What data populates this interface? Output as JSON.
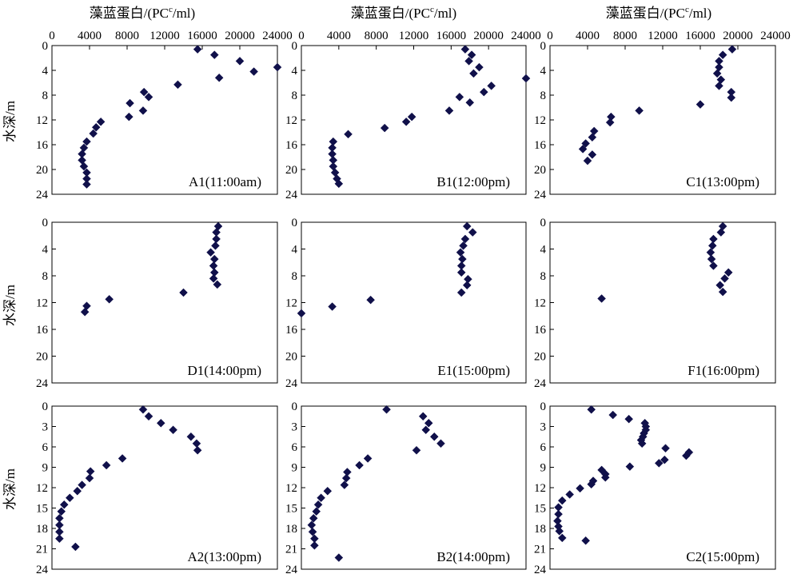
{
  "figure": {
    "x_axis_title": "藻蓝蛋白/(PC",
    "x_axis_title_sup": "c",
    "x_axis_title_tail": "/ml)",
    "y_axis_title": "水深/m",
    "colors": {
      "marker": "#10104a",
      "axis": "#000000",
      "frame": "#000000"
    }
  },
  "chart_data": [
    {
      "id": "A1",
      "type": "scatter",
      "label": "A1(11:00am)",
      "xlim": [
        0,
        24000
      ],
      "ylim": [
        0,
        24
      ],
      "x_ticks": [
        0,
        4000,
        8000,
        12000,
        16000,
        20000,
        24000
      ],
      "y_ticks": [
        0,
        4,
        8,
        12,
        16,
        20,
        24
      ],
      "points": [
        [
          15500,
          0.6
        ],
        [
          17300,
          1.5
        ],
        [
          20000,
          2.5
        ],
        [
          24000,
          3.5
        ],
        [
          21500,
          4.2
        ],
        [
          17800,
          5.2
        ],
        [
          13400,
          6.3
        ],
        [
          9800,
          7.5
        ],
        [
          10300,
          8.3
        ],
        [
          8300,
          9.3
        ],
        [
          9700,
          10.5
        ],
        [
          8200,
          11.5
        ],
        [
          5200,
          12.3
        ],
        [
          4700,
          13.2
        ],
        [
          4400,
          14.2
        ],
        [
          3700,
          15.5
        ],
        [
          3400,
          16.5
        ],
        [
          3200,
          17.5
        ],
        [
          3200,
          18.5
        ],
        [
          3400,
          19.5
        ],
        [
          3700,
          20.5
        ],
        [
          3700,
          21.5
        ],
        [
          3700,
          22.4
        ]
      ]
    },
    {
      "id": "B1",
      "type": "scatter",
      "label": "B1(12:00pm)",
      "xlim": [
        0,
        24000
      ],
      "ylim": [
        0,
        24
      ],
      "x_ticks": [
        0,
        4000,
        8000,
        12000,
        16000,
        20000,
        24000
      ],
      "y_ticks": [
        0,
        4,
        8,
        12,
        16,
        20,
        24
      ],
      "points": [
        [
          17500,
          0.6
        ],
        [
          18200,
          1.5
        ],
        [
          17900,
          2.5
        ],
        [
          19000,
          3.5
        ],
        [
          18400,
          4.5
        ],
        [
          24000,
          5.3
        ],
        [
          20300,
          6.5
        ],
        [
          19500,
          7.5
        ],
        [
          16900,
          8.3
        ],
        [
          18000,
          9.2
        ],
        [
          15800,
          10.5
        ],
        [
          11800,
          11.5
        ],
        [
          11200,
          12.3
        ],
        [
          8900,
          13.3
        ],
        [
          5000,
          14.3
        ],
        [
          3400,
          15.5
        ],
        [
          3300,
          16.5
        ],
        [
          3300,
          17.5
        ],
        [
          3400,
          18.5
        ],
        [
          3400,
          19.5
        ],
        [
          3600,
          20.5
        ],
        [
          3800,
          21.5
        ],
        [
          4000,
          22.3
        ]
      ]
    },
    {
      "id": "C1",
      "type": "scatter",
      "label": "C1(13:00pm)",
      "xlim": [
        0,
        24000
      ],
      "ylim": [
        0,
        24
      ],
      "x_ticks": [
        0,
        4000,
        8000,
        12000,
        16000,
        20000,
        24000
      ],
      "y_ticks": [
        0,
        4,
        8,
        12,
        16,
        20,
        24
      ],
      "points": [
        [
          19400,
          0.6
        ],
        [
          18400,
          1.5
        ],
        [
          18000,
          2.5
        ],
        [
          18000,
          3.5
        ],
        [
          17800,
          4.5
        ],
        [
          18200,
          5.5
        ],
        [
          18000,
          6.5
        ],
        [
          19300,
          7.5
        ],
        [
          19300,
          8.4
        ],
        [
          16000,
          9.5
        ],
        [
          9500,
          10.5
        ],
        [
          6500,
          11.5
        ],
        [
          6400,
          12.4
        ],
        [
          4700,
          13.8
        ],
        [
          4500,
          14.8
        ],
        [
          3800,
          15.8
        ],
        [
          3500,
          16.7
        ],
        [
          4500,
          17.6
        ],
        [
          4000,
          18.6
        ]
      ]
    },
    {
      "id": "D1",
      "type": "scatter",
      "label": "D1(14:00pm)",
      "xlim": [
        0,
        24000
      ],
      "ylim": [
        0,
        24
      ],
      "x_ticks": [],
      "y_ticks": [
        0,
        4,
        8,
        12,
        16,
        20,
        24
      ],
      "points": [
        [
          17700,
          0.6
        ],
        [
          17500,
          1.5
        ],
        [
          17500,
          2.5
        ],
        [
          17400,
          3.5
        ],
        [
          16900,
          4.5
        ],
        [
          17300,
          5.5
        ],
        [
          17200,
          6.5
        ],
        [
          17300,
          7.5
        ],
        [
          17200,
          8.4
        ],
        [
          17600,
          9.3
        ],
        [
          14000,
          10.5
        ],
        [
          6100,
          11.5
        ],
        [
          3700,
          12.5
        ],
        [
          3500,
          13.4
        ]
      ]
    },
    {
      "id": "E1",
      "type": "scatter",
      "label": "E1(15:00pm)",
      "xlim": [
        0,
        24000
      ],
      "ylim": [
        0,
        24
      ],
      "x_ticks": [],
      "y_ticks": [
        0,
        4,
        8,
        12,
        16,
        20,
        24
      ],
      "points": [
        [
          17700,
          0.6
        ],
        [
          18300,
          1.5
        ],
        [
          17500,
          2.5
        ],
        [
          17300,
          3.5
        ],
        [
          17000,
          4.5
        ],
        [
          17200,
          5.5
        ],
        [
          17100,
          6.5
        ],
        [
          17100,
          7.5
        ],
        [
          17800,
          8.5
        ],
        [
          17700,
          9.4
        ],
        [
          17100,
          10.5
        ],
        [
          7400,
          11.6
        ],
        [
          3300,
          12.6
        ],
        [
          0,
          13.6
        ]
      ]
    },
    {
      "id": "F1",
      "type": "scatter",
      "label": "F1(16:00pm)",
      "xlim": [
        0,
        24000
      ],
      "ylim": [
        0,
        24
      ],
      "x_ticks": [],
      "y_ticks": [
        0,
        4,
        8,
        12,
        16,
        20,
        24
      ],
      "points": [
        [
          18400,
          0.6
        ],
        [
          18200,
          1.5
        ],
        [
          17400,
          2.5
        ],
        [
          17300,
          3.5
        ],
        [
          17100,
          4.5
        ],
        [
          17200,
          5.5
        ],
        [
          17400,
          6.5
        ],
        [
          19000,
          7.5
        ],
        [
          18600,
          8.4
        ],
        [
          18100,
          9.4
        ],
        [
          18400,
          10.4
        ],
        [
          5500,
          11.4
        ]
      ]
    },
    {
      "id": "A2",
      "type": "scatter",
      "label": "A2(13:00pm)",
      "xlim": [
        0,
        24000
      ],
      "ylim": [
        0,
        24
      ],
      "x_ticks": [],
      "y_ticks": [
        0,
        3,
        6,
        9,
        12,
        15,
        18,
        21,
        24
      ],
      "points": [
        [
          9700,
          0.5
        ],
        [
          10300,
          1.5
        ],
        [
          11600,
          2.5
        ],
        [
          12900,
          3.5
        ],
        [
          14800,
          4.5
        ],
        [
          15400,
          5.5
        ],
        [
          15500,
          6.5
        ],
        [
          7500,
          7.7
        ],
        [
          5800,
          8.7
        ],
        [
          4100,
          9.6
        ],
        [
          4000,
          10.6
        ],
        [
          3200,
          11.6
        ],
        [
          2700,
          12.5
        ],
        [
          1900,
          13.5
        ],
        [
          1300,
          14.5
        ],
        [
          1000,
          15.5
        ],
        [
          800,
          16.5
        ],
        [
          800,
          17.5
        ],
        [
          800,
          18.5
        ],
        [
          800,
          19.5
        ],
        [
          2500,
          20.7
        ]
      ]
    },
    {
      "id": "B2",
      "type": "scatter",
      "label": "B2(14:00pm)",
      "xlim": [
        0,
        24000
      ],
      "ylim": [
        0,
        24
      ],
      "x_ticks": [],
      "y_ticks": [
        0,
        3,
        6,
        9,
        12,
        15,
        18,
        21,
        24
      ],
      "points": [
        [
          9100,
          0.5
        ],
        [
          13000,
          1.5
        ],
        [
          13600,
          2.5
        ],
        [
          13300,
          3.5
        ],
        [
          14200,
          4.5
        ],
        [
          14900,
          5.5
        ],
        [
          12300,
          6.5
        ],
        [
          7100,
          7.7
        ],
        [
          6200,
          8.7
        ],
        [
          4900,
          9.7
        ],
        [
          4800,
          10.6
        ],
        [
          4600,
          11.6
        ],
        [
          2800,
          12.5
        ],
        [
          2100,
          13.5
        ],
        [
          1800,
          14.5
        ],
        [
          1600,
          15.5
        ],
        [
          1300,
          16.5
        ],
        [
          1100,
          17.5
        ],
        [
          1200,
          18.5
        ],
        [
          1400,
          19.5
        ],
        [
          1400,
          20.5
        ],
        [
          4000,
          22.3
        ]
      ]
    },
    {
      "id": "C2",
      "type": "scatter",
      "label": "C2(15:00pm)",
      "xlim": [
        0,
        24000
      ],
      "ylim": [
        0,
        24
      ],
      "x_ticks": [],
      "y_ticks": [
        0,
        3,
        6,
        9,
        12,
        15,
        18,
        21,
        24
      ],
      "points": [
        [
          4400,
          0.5
        ],
        [
          6700,
          1.3
        ],
        [
          8400,
          1.9
        ],
        [
          10100,
          2.5
        ],
        [
          10200,
          3.0
        ],
        [
          10200,
          3.5
        ],
        [
          10000,
          4.0
        ],
        [
          9900,
          4.5
        ],
        [
          9700,
          5.0
        ],
        [
          9800,
          5.5
        ],
        [
          12300,
          6.2
        ],
        [
          14800,
          6.8
        ],
        [
          14500,
          7.3
        ],
        [
          12200,
          7.9
        ],
        [
          11600,
          8.4
        ],
        [
          8500,
          8.9
        ],
        [
          5500,
          9.4
        ],
        [
          5900,
          10.0
        ],
        [
          5900,
          10.5
        ],
        [
          4600,
          11.0
        ],
        [
          4400,
          11.5
        ],
        [
          3200,
          12.1
        ],
        [
          2100,
          13.0
        ],
        [
          1300,
          13.9
        ],
        [
          900,
          14.9
        ],
        [
          900,
          15.9
        ],
        [
          800,
          16.9
        ],
        [
          900,
          17.7
        ],
        [
          1000,
          18.4
        ],
        [
          1300,
          19.4
        ],
        [
          3800,
          19.8
        ]
      ]
    }
  ]
}
